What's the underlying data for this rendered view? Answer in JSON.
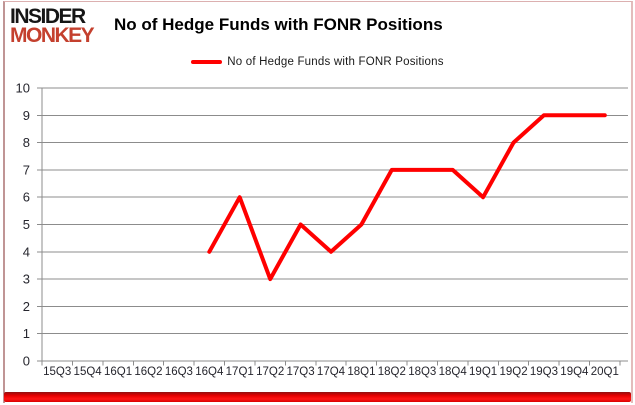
{
  "logo": {
    "line1": "INSIDER",
    "line2": "MONKEY"
  },
  "title": "No of Hedge Funds with FONR Positions",
  "legend": {
    "label": "No of Hedge Funds with FONR Positions",
    "color": "#ff0000"
  },
  "colors": {
    "line": "#ff0000",
    "grid": "#8c8c8c",
    "axis": "#8c8c8c",
    "tick_label": "#26262e",
    "title": "#000000",
    "logo_top": "#151515",
    "logo_bottom": "#c4402e",
    "frame": "#dcb0b0",
    "bottom_bar": "#ff0000"
  },
  "chart_data": {
    "type": "line",
    "title": "No of Hedge Funds with FONR Positions",
    "categories": [
      "15Q3",
      "15Q4",
      "16Q1",
      "16Q2",
      "16Q3",
      "16Q4",
      "17Q1",
      "17Q2",
      "17Q3",
      "17Q4",
      "18Q1",
      "18Q2",
      "18Q3",
      "18Q4",
      "19Q1",
      "19Q2",
      "19Q3",
      "19Q4",
      "20Q1"
    ],
    "series": [
      {
        "name": "No of Hedge Funds with FONR Positions",
        "color": "#ff0000",
        "values": [
          null,
          null,
          null,
          null,
          null,
          4,
          6,
          3,
          5,
          4,
          5,
          7,
          7,
          7,
          6,
          8,
          9,
          9,
          9
        ]
      }
    ],
    "xlabel": "",
    "ylabel": "",
    "ylim": [
      0,
      10
    ],
    "ytick_step": 1,
    "grid": true,
    "legend_position": "top-center"
  }
}
